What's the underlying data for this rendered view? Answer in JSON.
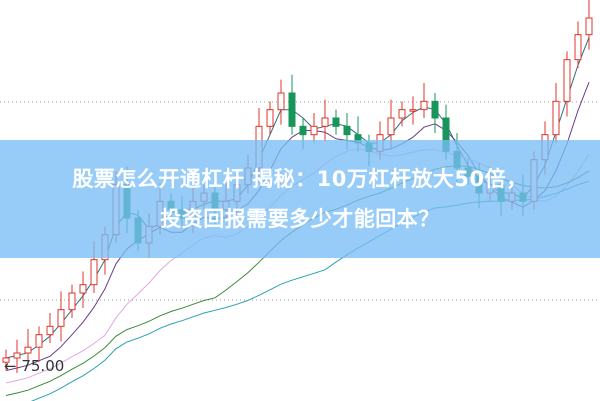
{
  "headline": {
    "line1": "股票怎么开通杠杆 揭秘：10万杠杆放大50倍，",
    "line2": "投资回报需要多少才能回本？"
  },
  "chart_data": {
    "type": "candlestick",
    "price_marker": "75.00",
    "grid": "horizontal dotted",
    "colors": {
      "up": "#e0342b",
      "down": "#17955a",
      "banner": "#78bef5"
    },
    "moving_average_colors": [
      "#2b6f7a",
      "#6a3a8a",
      "#e2a8e6",
      "#3a8a3a",
      "#2aa0b0"
    ],
    "closes": [
      76.2,
      76.8,
      77.5,
      79,
      80,
      82,
      84,
      85,
      88,
      91,
      97,
      93,
      90,
      92,
      95,
      94,
      93,
      95,
      96,
      94,
      95,
      97,
      99,
      104,
      106,
      108,
      104,
      103,
      104,
      105,
      104,
      103,
      102,
      101,
      103,
      105,
      106,
      106,
      107,
      105,
      101,
      99,
      98,
      96,
      97,
      95,
      96,
      95,
      100,
      103,
      107,
      112,
      115,
      117
    ]
  }
}
